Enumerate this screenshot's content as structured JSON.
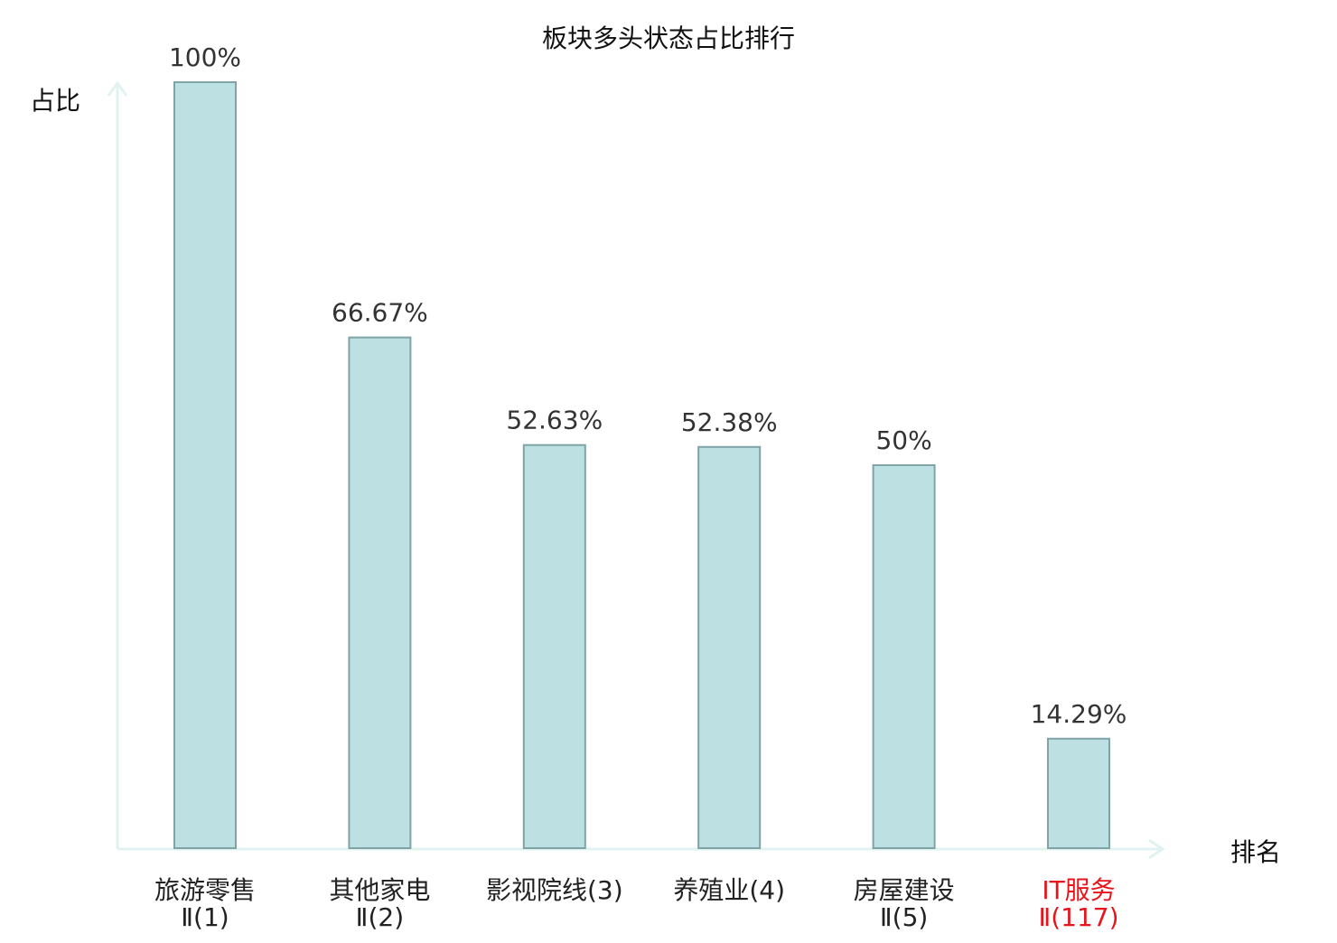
{
  "chart_data": {
    "type": "bar",
    "title": "板块多头状态占比排行",
    "xlabel": "排名",
    "ylabel": "占比",
    "ylim": [
      0,
      100
    ],
    "grid": false,
    "legend": "none",
    "categories": [
      {
        "name": "旅游零售",
        "rank": "Ⅱ(1)",
        "highlight": false
      },
      {
        "name": "其他家电",
        "rank": "Ⅱ(2)",
        "highlight": false
      },
      {
        "name": "影视院线(3)",
        "rank": "",
        "highlight": false
      },
      {
        "name": "养殖业(4)",
        "rank": "",
        "highlight": false
      },
      {
        "name": "房屋建设",
        "rank": "Ⅱ(5)",
        "highlight": false
      },
      {
        "name": "IT服务",
        "rank": "Ⅱ(117)",
        "highlight": true
      }
    ],
    "values": [
      100,
      66.67,
      52.63,
      52.38,
      50,
      14.29
    ],
    "value_labels": [
      "100%",
      "66.67%",
      "52.63%",
      "52.38%",
      "50%",
      "14.29%"
    ],
    "colors": {
      "bar_fill": "#bde0e3",
      "bar_stroke": "#7fa3a6",
      "axis": "#e0f3f0",
      "text": "#222222",
      "value_label": "#333333",
      "highlight": "#e8141c"
    }
  }
}
